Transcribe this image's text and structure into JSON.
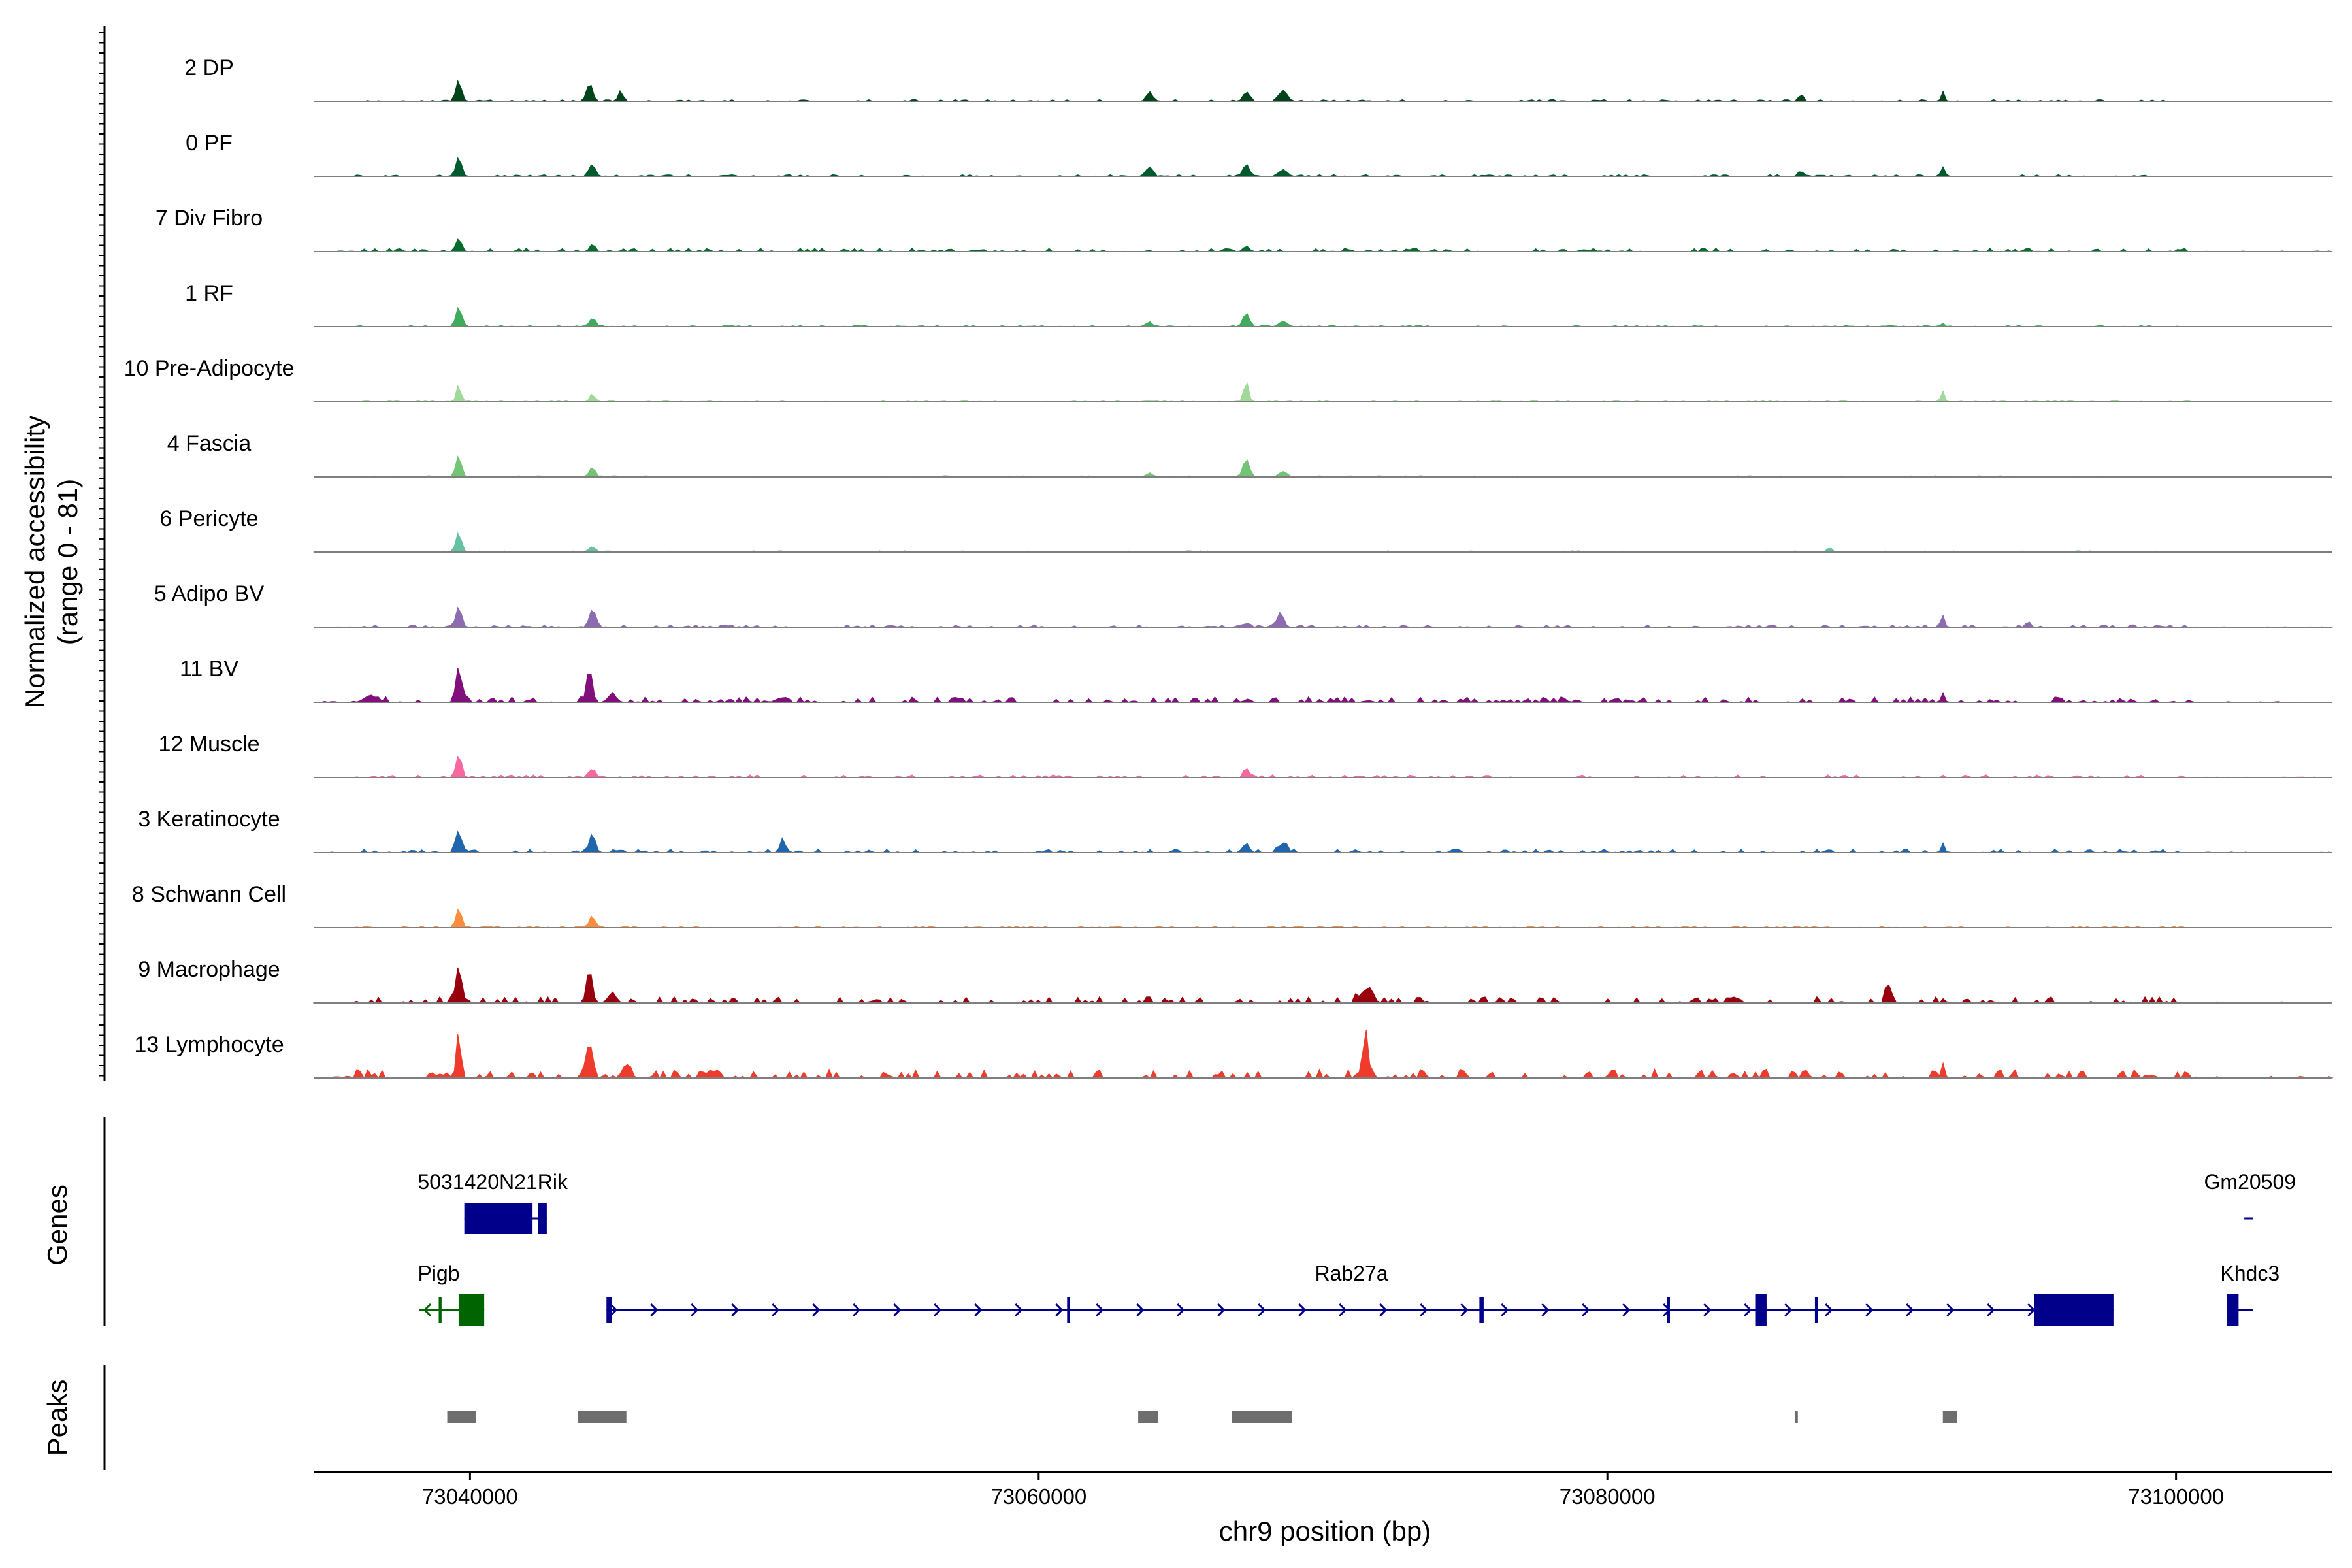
{
  "chart_data": {
    "type": "area",
    "subtype": "genome-coverage-track",
    "xlabel": "chr9 position (bp)",
    "ylabel_lines": [
      "Normalized accessibility",
      "(range 0 - 81)"
    ],
    "y_range": [
      0,
      81
    ],
    "xlim": [
      73034500,
      73105500
    ],
    "x_ticks": [
      73040000,
      73060000,
      73080000,
      73100000
    ],
    "x_tick_labels": [
      "73040000",
      "73060000",
      "73080000",
      "73100000"
    ],
    "genes_panel_label": "Genes",
    "peaks_panel_label": "Peaks",
    "tracks": [
      {
        "name": "2 DP",
        "color": "#00441b",
        "peaks": [
          [
            73039600,
            0.3,
            140
          ],
          [
            73044200,
            0.25,
            150
          ],
          [
            73045300,
            0.15,
            120
          ],
          [
            73063900,
            0.14,
            150
          ],
          [
            73067300,
            0.14,
            150
          ],
          [
            73068600,
            0.16,
            200
          ],
          [
            73086800,
            0.09,
            120
          ],
          [
            73091800,
            0.12,
            90
          ]
        ],
        "noise": 0.025
      },
      {
        "name": "0 PF",
        "color": "#005a2f",
        "peaks": [
          [
            73039600,
            0.28,
            140
          ],
          [
            73044300,
            0.18,
            150
          ],
          [
            73063900,
            0.14,
            150
          ],
          [
            73067300,
            0.18,
            160
          ],
          [
            73068600,
            0.1,
            200
          ],
          [
            73086800,
            0.08,
            120
          ],
          [
            73091800,
            0.12,
            90
          ]
        ],
        "noise": 0.025
      },
      {
        "name": "7 Div Fibro",
        "color": "#006d2c",
        "peaks": [
          [
            73039600,
            0.18,
            140
          ],
          [
            73044300,
            0.07,
            150
          ],
          [
            73067300,
            0.08,
            150
          ]
        ],
        "noise": 0.05
      },
      {
        "name": "1 RF",
        "color": "#41ab5d",
        "peaks": [
          [
            73039600,
            0.28,
            140
          ],
          [
            73044300,
            0.12,
            150
          ],
          [
            73063900,
            0.06,
            150
          ],
          [
            73067300,
            0.2,
            160
          ],
          [
            73068600,
            0.08,
            200
          ],
          [
            73091800,
            0.05,
            90
          ]
        ],
        "noise": 0.02
      },
      {
        "name": "10 Pre-Adipocyte",
        "color": "#a1d99b",
        "peaks": [
          [
            73039600,
            0.25,
            110
          ],
          [
            73044300,
            0.12,
            120
          ],
          [
            73067300,
            0.3,
            120
          ],
          [
            73091800,
            0.14,
            90
          ]
        ],
        "noise": 0.02
      },
      {
        "name": "4 Fascia",
        "color": "#74c476",
        "peaks": [
          [
            73039600,
            0.3,
            140
          ],
          [
            73044300,
            0.14,
            150
          ],
          [
            73063900,
            0.06,
            150
          ],
          [
            73067300,
            0.26,
            160
          ],
          [
            73068600,
            0.08,
            200
          ]
        ],
        "noise": 0.02
      },
      {
        "name": "6 Pericyte",
        "color": "#66c2a4",
        "peaks": [
          [
            73039600,
            0.28,
            140
          ],
          [
            73044300,
            0.08,
            150
          ],
          [
            73087800,
            0.06,
            120
          ]
        ],
        "noise": 0.02
      },
      {
        "name": "5 Adipo BV",
        "color": "#8c6bb1",
        "peaks": [
          [
            73039600,
            0.3,
            140
          ],
          [
            73044300,
            0.26,
            150
          ],
          [
            73068500,
            0.22,
            160
          ],
          [
            73067300,
            0.06,
            120
          ],
          [
            73091800,
            0.14,
            90
          ],
          [
            73094800,
            0.08,
            120
          ]
        ],
        "noise": 0.035
      },
      {
        "name": "11 BV",
        "color": "#810f7c",
        "peaks": [
          [
            73039600,
            0.52,
            140
          ],
          [
            73044200,
            0.5,
            140
          ],
          [
            73045000,
            0.12,
            200
          ],
          [
            73036500,
            0.1,
            300
          ],
          [
            73091800,
            0.14,
            90
          ]
        ],
        "noise": 0.08
      },
      {
        "name": "12 Muscle",
        "color": "#f768a1",
        "peaks": [
          [
            73039600,
            0.32,
            140
          ],
          [
            73044300,
            0.12,
            150
          ],
          [
            73067300,
            0.12,
            120
          ]
        ],
        "noise": 0.04
      },
      {
        "name": "3 Keratinocyte",
        "color": "#2166ac",
        "peaks": [
          [
            73039600,
            0.32,
            140
          ],
          [
            73044300,
            0.28,
            150
          ],
          [
            73051000,
            0.18,
            140
          ],
          [
            73067300,
            0.14,
            150
          ],
          [
            73068600,
            0.14,
            200
          ],
          [
            73091800,
            0.14,
            90
          ]
        ],
        "noise": 0.05
      },
      {
        "name": "8 Schwann Cell",
        "color": "#fd8d3c",
        "peaks": [
          [
            73039600,
            0.26,
            140
          ],
          [
            73044300,
            0.16,
            150
          ]
        ],
        "noise": 0.025
      },
      {
        "name": "9 Macrophage",
        "color": "#99000d",
        "peaks": [
          [
            73039600,
            0.48,
            140
          ],
          [
            73044200,
            0.5,
            140
          ],
          [
            73045000,
            0.14,
            200
          ],
          [
            73071500,
            0.18,
            300
          ],
          [
            73089900,
            0.26,
            150
          ]
        ],
        "noise": 0.09
      },
      {
        "name": "13 Lymphocyte",
        "color": "#ef3b2c",
        "peaks": [
          [
            73039600,
            0.68,
            110
          ],
          [
            73044200,
            0.56,
            130
          ],
          [
            73071500,
            0.72,
            130
          ],
          [
            73045500,
            0.2,
            200
          ],
          [
            73091800,
            0.22,
            90
          ]
        ],
        "noise": 0.13
      }
    ],
    "genes": [
      {
        "name": "5031420N21Rik",
        "strand": "+",
        "start": 73039800,
        "end": 73042700,
        "color": "#00008b",
        "row": 1,
        "label_x": 73040800,
        "exons": [
          [
            73039800,
            73042200
          ],
          [
            73042400,
            73042700
          ]
        ]
      },
      {
        "name": "Gm20509",
        "strand": "+",
        "start": 73102400,
        "end": 73102700,
        "color": "#00008b",
        "row": 1,
        "label_x": 73102600,
        "exons": []
      },
      {
        "name": "Pigb",
        "strand": "-",
        "start": 73038200,
        "end": 73040500,
        "color": "#006400",
        "row": 2,
        "label_x": 73038900,
        "exons": [
          [
            73038900,
            73039000
          ],
          [
            73039600,
            73040500
          ]
        ]
      },
      {
        "name": "Rab27a",
        "strand": "+",
        "start": 73044800,
        "end": 73097800,
        "color": "#00008b",
        "row": 2,
        "label_x": 73071000,
        "exons": [
          [
            73044800,
            73045000
          ],
          [
            73061000,
            73061100
          ],
          [
            73075500,
            73075650
          ],
          [
            73082100,
            73082200
          ],
          [
            73085200,
            73085600
          ],
          [
            73087300,
            73087400
          ],
          [
            73095000,
            73097800
          ]
        ]
      },
      {
        "name": "Khdc3",
        "strand": "+",
        "start": 73101800,
        "end": 73102700,
        "color": "#00008b",
        "row": 2,
        "label_x": 73102600,
        "exons": [
          [
            73101800,
            73102200
          ]
        ]
      }
    ],
    "peaks": [
      [
        73039200,
        73040200
      ],
      [
        73043800,
        73045500
      ],
      [
        73063500,
        73064200
      ],
      [
        73066800,
        73068900
      ],
      [
        73086600,
        73086700
      ],
      [
        73091800,
        73092300
      ]
    ]
  }
}
